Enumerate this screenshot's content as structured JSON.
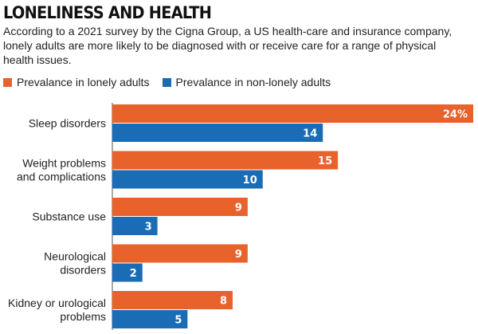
{
  "chart_data": {
    "type": "bar",
    "orientation": "horizontal",
    "title": "LONELINESS AND HEALTH",
    "subtitle": "According to a 2021 survey by the Cigna Group, a US health-care and insurance company, lonely adults are more likely to be diagnosed with or receive care for a range of physical health issues.",
    "categories": [
      [
        "Sleep disorders"
      ],
      [
        "Weight problems",
        "and complications"
      ],
      [
        "Substance use"
      ],
      [
        "Neurological",
        "disorders"
      ],
      [
        "Kidney or urological",
        "problems"
      ]
    ],
    "series": [
      {
        "name": "Prevalance in lonely adults",
        "color": "#e8622c",
        "values": [
          24,
          15,
          9,
          9,
          8
        ],
        "labels": [
          "24%",
          "15",
          "9",
          "9",
          "8"
        ]
      },
      {
        "name": "Prevalance in non-lonely adults",
        "color": "#1a6cb5",
        "values": [
          14,
          10,
          3,
          2,
          5
        ],
        "labels": [
          "14",
          "10",
          "3",
          "2",
          "5"
        ]
      }
    ],
    "xlim": [
      0,
      24
    ],
    "legend": "top-left",
    "grid": false
  }
}
